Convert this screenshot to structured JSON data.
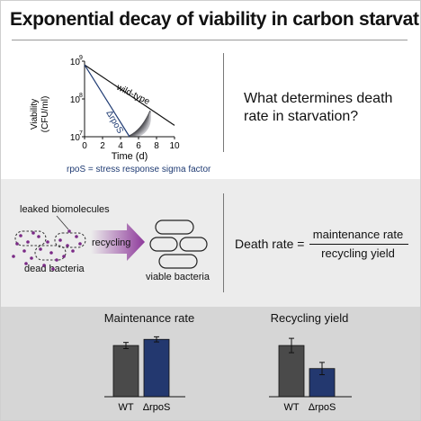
{
  "title": "Exponential decay of viability in carbon starvation",
  "top_panel": {
    "y_label_line1": "Viability",
    "y_label_line2": "(CFU/ml)",
    "x_label": "Time (d)",
    "y_ticks": [
      "10",
      "10",
      "10"
    ],
    "y_tick_exponents": [
      "9",
      "8",
      "7"
    ],
    "x_ticks": [
      "0",
      "2",
      "4",
      "6",
      "8",
      "10"
    ],
    "series_wildtype": "wild-type",
    "series_rpos": "ΔrpoS",
    "footnote": "rpoS = stress response sigma factor",
    "question": "What determines death rate in starvation?"
  },
  "middle_panel": {
    "leaked_label": "leaked biomolecules",
    "dead_label": "dead bacteria",
    "recycling_label": "recycling",
    "viable_label": "viable bacteria",
    "equation_lhs": "Death rate =",
    "equation_numerator": "maintenance rate",
    "equation_denominator": "recycling yield"
  },
  "bottom_panel": {
    "maintenance": {
      "title": "Maintenance rate",
      "categories": [
        "WT",
        "ΔrpoS"
      ]
    },
    "recycling": {
      "title": "Recycling yield",
      "categories": [
        "WT",
        "ΔrpoS"
      ]
    }
  },
  "colors": {
    "wt_bar": "#4a4a4a",
    "rpos_bar": "#23386f",
    "rpos_line": "#1f3b73",
    "arrow_purple": "#8e3a9b",
    "dot_purple": "#7a2a86"
  },
  "chart_data": [
    {
      "type": "line",
      "title": "",
      "xlabel": "Time (d)",
      "ylabel": "Viability (CFU/ml)",
      "xlim": [
        0,
        10
      ],
      "ylim": [
        10000000,
        1000000000
      ],
      "yscale": "log",
      "series": [
        {
          "name": "wild-type",
          "x": [
            0,
            10
          ],
          "y": [
            800000000,
            20000000
          ]
        },
        {
          "name": "ΔrpoS",
          "x": [
            0,
            5
          ],
          "y": [
            800000000,
            10000000
          ]
        }
      ]
    },
    {
      "type": "bar",
      "title": "Maintenance rate",
      "categories": [
        "WT",
        "ΔrpoS"
      ],
      "values": [
        1.0,
        1.12
      ],
      "errors": [
        0.06,
        0.05
      ],
      "ylim": [
        0,
        1.3
      ]
    },
    {
      "type": "bar",
      "title": "Recycling yield",
      "categories": [
        "WT",
        "ΔrpoS"
      ],
      "values": [
        1.0,
        0.55
      ],
      "errors": [
        0.14,
        0.12
      ],
      "ylim": [
        0,
        1.3
      ]
    }
  ]
}
